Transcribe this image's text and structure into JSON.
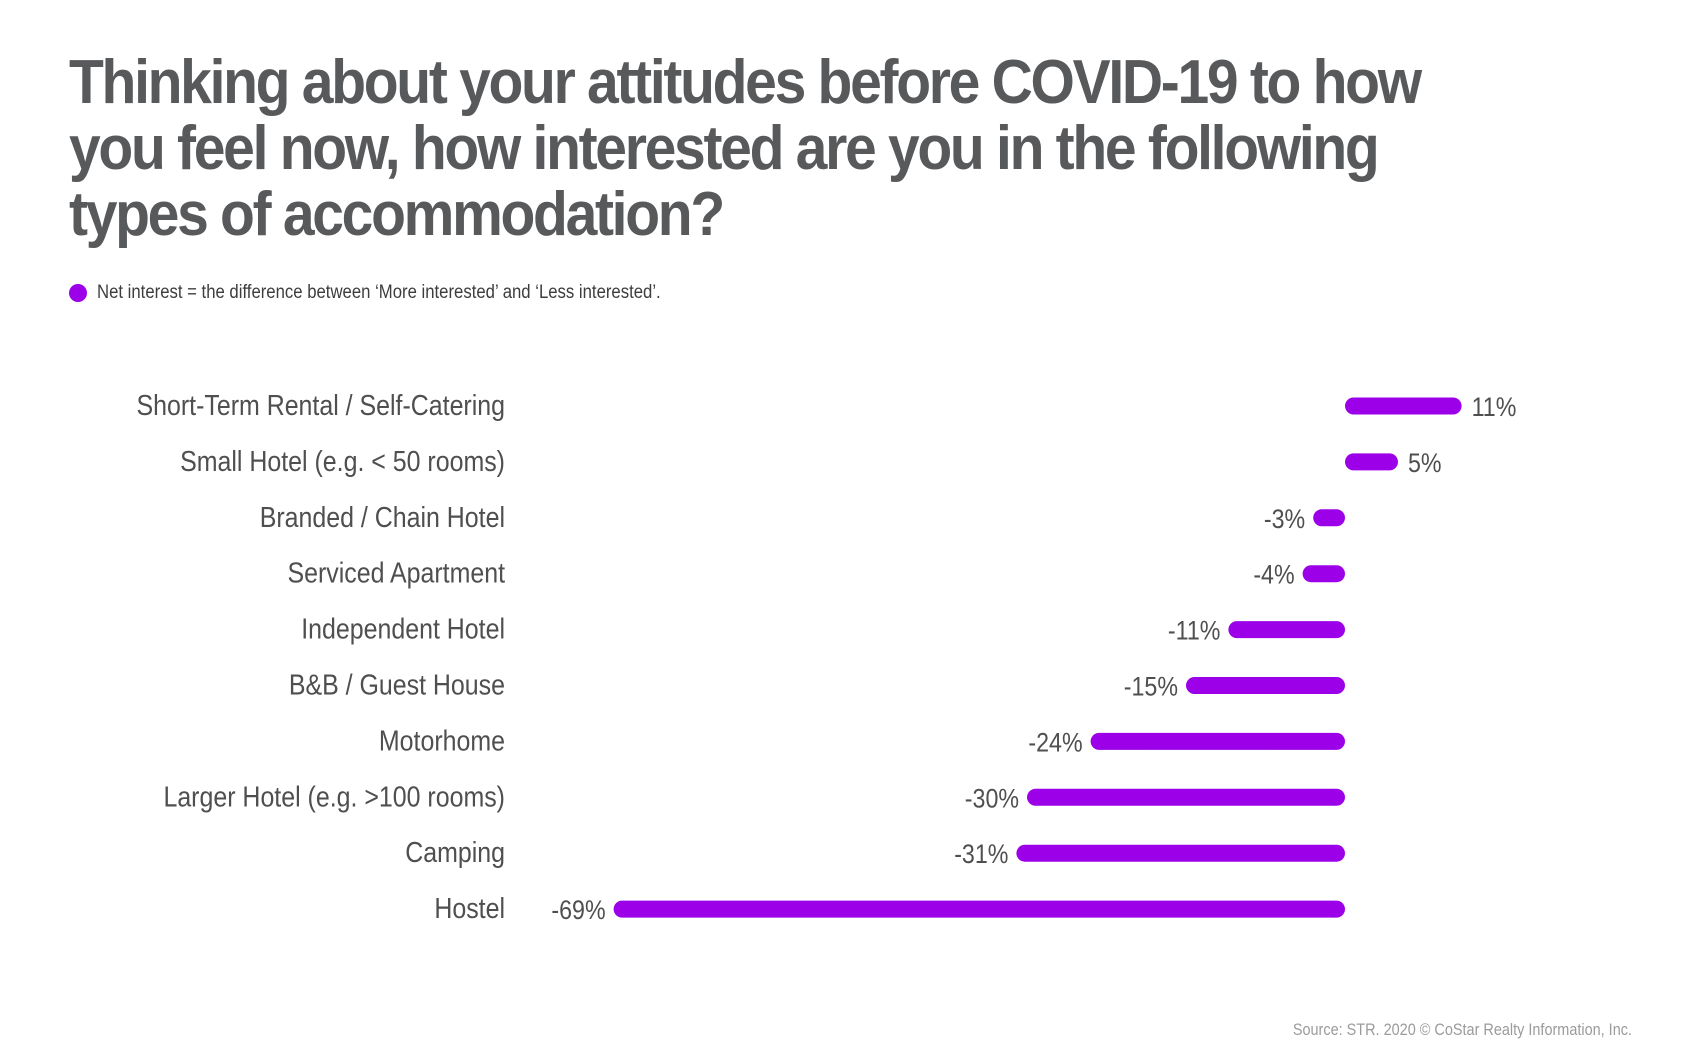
{
  "title": "Thinking about your attitudes before COVID-19 to how you feel now, how interested are you in the following types of accommodation?",
  "legend": {
    "text": "Net interest = the difference between ‘More interested’ and ‘Less interested’.",
    "color": "#9b00e8"
  },
  "source": "Source: STR. 2020 © CoStar Realty Information, Inc.",
  "chart_data": {
    "type": "bar",
    "orientation": "horizontal",
    "color": "#9b00e8",
    "categories": [
      "Short-Term Rental / Self-Catering",
      "Small Hotel (e.g. < 50 rooms)",
      "Branded / Chain Hotel",
      "Serviced Apartment",
      "Independent Hotel",
      "B&B / Guest House",
      "Motorhome",
      "Larger Hotel (e.g. >100 rooms)",
      "Camping",
      "Hostel"
    ],
    "values": [
      11,
      5,
      -3,
      -4,
      -11,
      -15,
      -24,
      -30,
      -31,
      -69
    ],
    "value_labels": [
      "11%",
      "5%",
      "-3%",
      "-4%",
      "-11%",
      "-15%",
      "-24%",
      "-30%",
      "-31%",
      "-69%"
    ],
    "unit": "%",
    "grid": false
  }
}
